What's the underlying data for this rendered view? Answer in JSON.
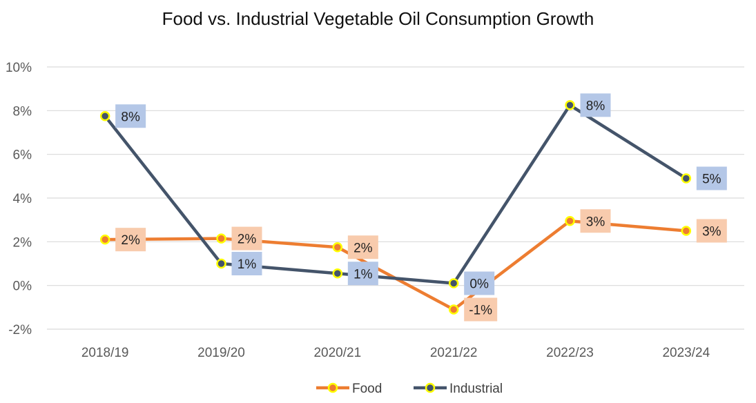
{
  "chart_data": {
    "type": "line",
    "title": "Food vs. Industrial Vegetable Oil Consumption Growth",
    "xlabel": "",
    "ylabel": "",
    "categories": [
      "2018/19",
      "2019/20",
      "2020/21",
      "2021/22",
      "2022/23",
      "2023/24"
    ],
    "y_ticks": [
      "-2%",
      "0%",
      "2%",
      "4%",
      "6%",
      "8%",
      "10%"
    ],
    "ylim": [
      -2,
      10
    ],
    "grid": true,
    "legend_position": "bottom",
    "series": [
      {
        "name": "Food",
        "color": "#ED7D31",
        "label_bg": "#F8CBAD",
        "marker_fill": "#ED7D31",
        "marker_edge": "#FFFF00",
        "values": [
          2.1,
          2.15,
          1.75,
          -1.1,
          2.95,
          2.5
        ],
        "labels": [
          "2%",
          "2%",
          "2%",
          "-1%",
          "3%",
          "3%"
        ]
      },
      {
        "name": "Industrial",
        "color": "#44546A",
        "label_bg": "#B4C7E7",
        "marker_fill": "#44546A",
        "marker_edge": "#FFFF00",
        "values": [
          7.75,
          1.0,
          0.55,
          0.1,
          8.25,
          4.9
        ],
        "labels": [
          "8%",
          "1%",
          "1%",
          "0%",
          "8%",
          "5%"
        ]
      }
    ]
  }
}
